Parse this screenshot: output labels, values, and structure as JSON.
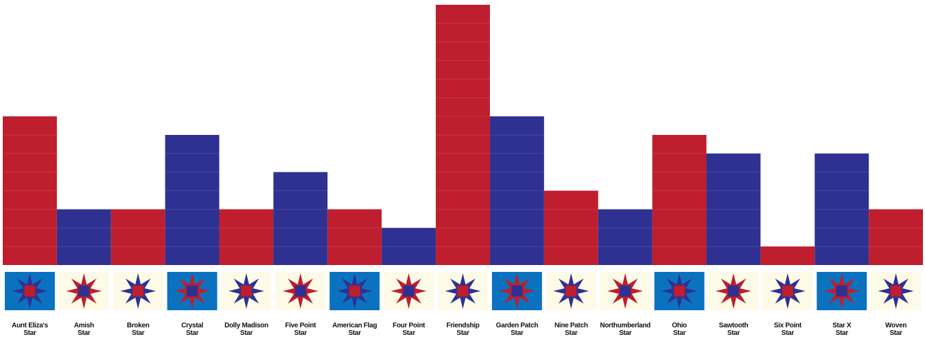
{
  "chart_data": {
    "type": "bar",
    "categories": [
      "Aunt Eliza's\nStar",
      "Amish\nStar",
      "Broken\nStar",
      "Crystal\nStar",
      "Dolly Madison\nStar",
      "Five Point\nStar",
      "American Flag\nStar",
      "Four Point\nStar",
      "Friendship\nStar",
      "Garden Patch\nStar",
      "Nine Patch\nStar",
      "Northumberland\nStar",
      "Ohio\nStar",
      "Sawtooth\nStar",
      "Six Point\nStar",
      "Star X\nStar",
      "Woven\nStar"
    ],
    "values": [
      8,
      3,
      3,
      7,
      3,
      5,
      3,
      2,
      14,
      8,
      4,
      3,
      7,
      6,
      1,
      6,
      3
    ],
    "colors": [
      "#be1e2d",
      "#2e3192",
      "#be1e2d",
      "#2e3192",
      "#be1e2d",
      "#2e3192",
      "#be1e2d",
      "#2e3192",
      "#be1e2d",
      "#2e3192",
      "#be1e2d",
      "#2e3192",
      "#be1e2d",
      "#2e3192",
      "#be1e2d",
      "#2e3192",
      "#be1e2d"
    ],
    "ylim": [
      0,
      14
    ]
  }
}
